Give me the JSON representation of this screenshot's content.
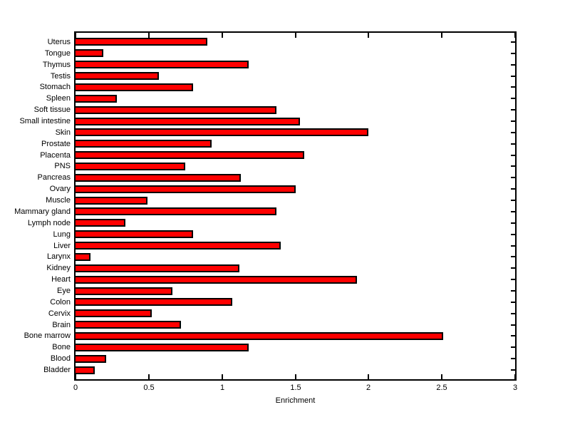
{
  "figure": {
    "background": "#FFFFFF"
  },
  "chart_data": {
    "type": "bar",
    "orientation": "horizontal",
    "title": "",
    "xlabel": "Enrichment",
    "ylabel": "",
    "xlim": [
      0,
      3
    ],
    "xticks": [
      0,
      0.5,
      1,
      1.5,
      2,
      2.5,
      3
    ],
    "xtick_labels": [
      "0",
      "0.5",
      "1",
      "1.5",
      "2",
      "2.5",
      "3"
    ],
    "category_order": "top-to-bottom",
    "categories": [
      "Uterus",
      "Tongue",
      "Thymus",
      "Testis",
      "Stomach",
      "Spleen",
      "Soft tissue",
      "Small intestine",
      "Skin",
      "Prostate",
      "Placenta",
      "PNS",
      "Pancreas",
      "Ovary",
      "Muscle",
      "Mammary gland",
      "Lymph node",
      "Lung",
      "Liver",
      "Larynx",
      "Kidney",
      "Heart",
      "Eye",
      "Colon",
      "Cervix",
      "Brain",
      "Bone marrow",
      "Bone",
      "Blood",
      "Bladder"
    ],
    "values": [
      0.9,
      0.19,
      1.18,
      0.57,
      0.8,
      0.28,
      1.37,
      1.53,
      2.0,
      0.93,
      1.56,
      0.75,
      1.13,
      1.5,
      0.49,
      1.37,
      0.34,
      0.8,
      1.4,
      0.1,
      1.12,
      1.92,
      0.66,
      1.07,
      0.52,
      0.72,
      2.51,
      1.18,
      0.21,
      0.13
    ],
    "bar_color": "#FF0000",
    "bar_edge_color": "#000000",
    "axis_color": "#000000",
    "grid": false,
    "legend": null
  }
}
